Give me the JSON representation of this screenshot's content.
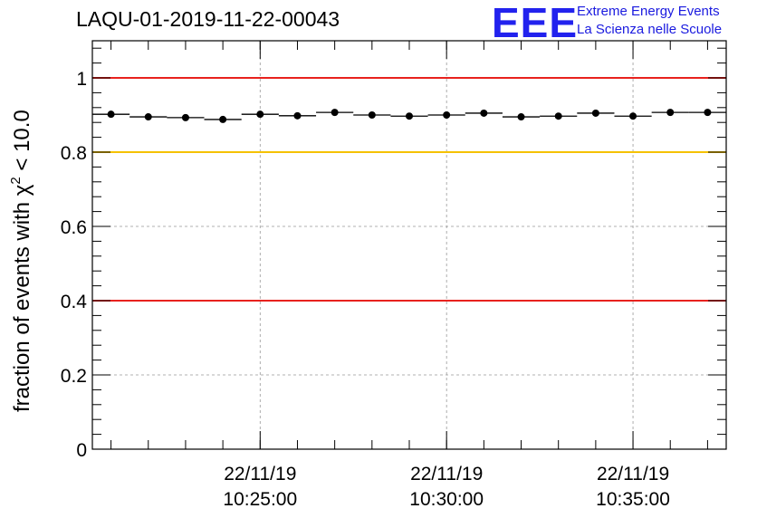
{
  "header": {
    "title": "LAQU-01-2019-11-22-00043",
    "logo_text": "EEE",
    "logo_line1": "Extreme Energy Events",
    "logo_line2": "La Scienza nelle Scuole"
  },
  "chart_data": {
    "type": "scatter",
    "title": "LAQU-01-2019-11-22-00043",
    "ylabel_main": "fraction of events with χ",
    "ylabel_sup": "2",
    "ylabel_tail": " < 10.0",
    "xlabel": "",
    "ylim": [
      0,
      1.1
    ],
    "xlim_minutes": [
      0,
      17
    ],
    "yticks": [
      0,
      0.2,
      0.4,
      0.6,
      0.8,
      1
    ],
    "ytick_labels": [
      "0",
      "0.2",
      "0.4",
      "0.6",
      "0.8",
      "1"
    ],
    "xticks_minutes": [
      4.5,
      9.5,
      14.5
    ],
    "xtick_labels": [
      {
        "date": "22/11/19",
        "time": "10:25:00"
      },
      {
        "date": "22/11/19",
        "time": "10:30:00"
      },
      {
        "date": "22/11/19",
        "time": "10:35:00"
      }
    ],
    "bin_width_minutes": 1,
    "points_x_minutes": [
      0.5,
      1.5,
      2.5,
      3.5,
      4.5,
      5.5,
      6.5,
      7.5,
      8.5,
      9.5,
      10.5,
      11.5,
      12.5,
      13.5,
      14.5,
      15.5,
      16.5
    ],
    "points_y": [
      0.902,
      0.895,
      0.893,
      0.888,
      0.902,
      0.898,
      0.907,
      0.9,
      0.897,
      0.9,
      0.905,
      0.895,
      0.897,
      0.905,
      0.897,
      0.907,
      0.907
    ],
    "reference_lines": [
      {
        "y": 1.0,
        "color": "#e8221e"
      },
      {
        "y": 0.8,
        "color": "#f5c200"
      },
      {
        "y": 0.4,
        "color": "#e8221e"
      }
    ],
    "grid": true,
    "point_color": "#000000"
  }
}
